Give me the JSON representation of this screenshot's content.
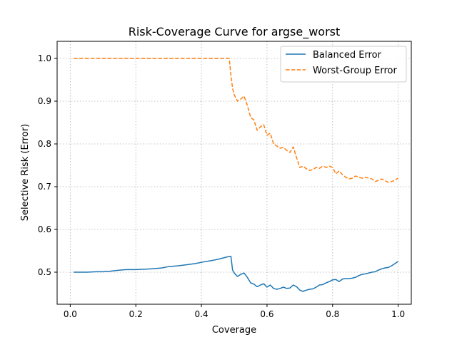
{
  "chart_data": {
    "type": "line",
    "title": "Risk-Coverage Curve for argse_worst",
    "xlabel": "Coverage",
    "ylabel": "Selective Risk (Error)",
    "xlim": [
      -0.04,
      1.04
    ],
    "ylim": [
      0.425,
      1.04
    ],
    "xticks": [
      0.0,
      0.2,
      0.4,
      0.6,
      0.8,
      1.0
    ],
    "xtick_labels": [
      "0.0",
      "0.2",
      "0.4",
      "0.6",
      "0.8",
      "1.0"
    ],
    "yticks": [
      0.5,
      0.6,
      0.7,
      0.8,
      0.9,
      1.0
    ],
    "ytick_labels": [
      "0.5",
      "0.6",
      "0.7",
      "0.8",
      "0.9",
      "1.0"
    ],
    "grid": true,
    "legend": "top-right",
    "series": [
      {
        "name": "Balanced Error",
        "color": "#1f77b4",
        "style": "solid",
        "x": [
          0.01,
          0.05,
          0.08,
          0.1,
          0.12,
          0.14,
          0.17,
          0.2,
          0.23,
          0.25,
          0.28,
          0.3,
          0.33,
          0.36,
          0.38,
          0.4,
          0.43,
          0.45,
          0.47,
          0.48,
          0.49,
          0.495,
          0.5,
          0.51,
          0.52,
          0.53,
          0.54,
          0.55,
          0.56,
          0.57,
          0.58,
          0.59,
          0.6,
          0.61,
          0.62,
          0.63,
          0.64,
          0.65,
          0.66,
          0.67,
          0.68,
          0.69,
          0.7,
          0.71,
          0.72,
          0.73,
          0.74,
          0.75,
          0.76,
          0.77,
          0.78,
          0.79,
          0.8,
          0.81,
          0.82,
          0.83,
          0.84,
          0.85,
          0.86,
          0.87,
          0.88,
          0.89,
          0.9,
          0.91,
          0.92,
          0.93,
          0.94,
          0.95,
          0.96,
          0.97,
          0.98,
          0.99,
          1.0
        ],
        "y": [
          0.5,
          0.5,
          0.501,
          0.501,
          0.502,
          0.504,
          0.506,
          0.506,
          0.507,
          0.508,
          0.51,
          0.513,
          0.515,
          0.518,
          0.52,
          0.523,
          0.527,
          0.53,
          0.534,
          0.536,
          0.537,
          0.505,
          0.498,
          0.49,
          0.495,
          0.498,
          0.488,
          0.475,
          0.472,
          0.466,
          0.47,
          0.473,
          0.465,
          0.47,
          0.462,
          0.46,
          0.462,
          0.465,
          0.462,
          0.463,
          0.47,
          0.466,
          0.458,
          0.455,
          0.458,
          0.46,
          0.461,
          0.465,
          0.47,
          0.471,
          0.475,
          0.478,
          0.482,
          0.483,
          0.478,
          0.484,
          0.485,
          0.485,
          0.486,
          0.488,
          0.492,
          0.495,
          0.496,
          0.498,
          0.5,
          0.501,
          0.505,
          0.508,
          0.51,
          0.511,
          0.515,
          0.52,
          0.525
        ]
      },
      {
        "name": "Worst-Group Error",
        "color": "#ff7f0e",
        "style": "dashed",
        "x": [
          0.01,
          0.1,
          0.2,
          0.3,
          0.4,
          0.45,
          0.485,
          0.49,
          0.495,
          0.5,
          0.51,
          0.52,
          0.53,
          0.54,
          0.55,
          0.56,
          0.57,
          0.58,
          0.59,
          0.6,
          0.61,
          0.62,
          0.63,
          0.64,
          0.65,
          0.66,
          0.67,
          0.68,
          0.69,
          0.7,
          0.71,
          0.72,
          0.73,
          0.74,
          0.75,
          0.76,
          0.77,
          0.78,
          0.79,
          0.8,
          0.81,
          0.82,
          0.83,
          0.84,
          0.85,
          0.86,
          0.87,
          0.88,
          0.89,
          0.9,
          0.91,
          0.92,
          0.93,
          0.94,
          0.95,
          0.96,
          0.97,
          0.98,
          0.99,
          1.0
        ],
        "y": [
          1.0,
          1.0,
          1.0,
          1.0,
          1.0,
          1.0,
          1.0,
          0.96,
          0.93,
          0.915,
          0.9,
          0.905,
          0.912,
          0.89,
          0.862,
          0.856,
          0.832,
          0.84,
          0.845,
          0.82,
          0.825,
          0.8,
          0.795,
          0.79,
          0.792,
          0.785,
          0.78,
          0.793,
          0.768,
          0.745,
          0.748,
          0.742,
          0.738,
          0.74,
          0.745,
          0.743,
          0.748,
          0.745,
          0.748,
          0.745,
          0.73,
          0.737,
          0.728,
          0.722,
          0.718,
          0.72,
          0.725,
          0.722,
          0.72,
          0.722,
          0.72,
          0.718,
          0.712,
          0.715,
          0.718,
          0.714,
          0.71,
          0.712,
          0.715,
          0.72
        ]
      }
    ]
  }
}
